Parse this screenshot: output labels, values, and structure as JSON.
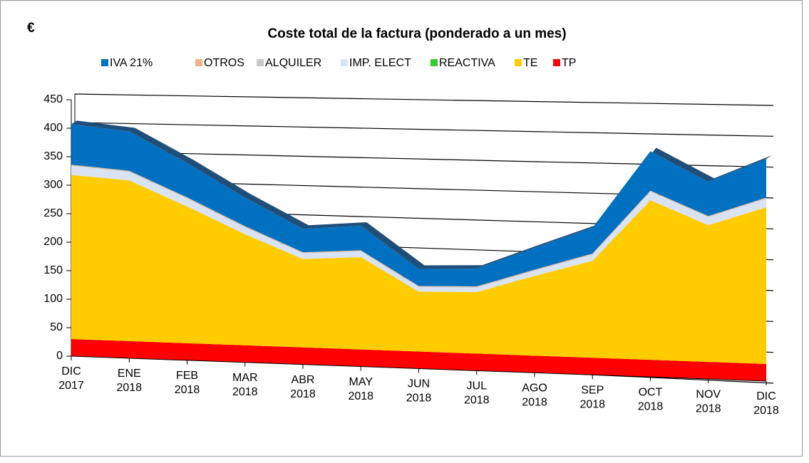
{
  "chart_data": {
    "type": "area3d",
    "unit": "€",
    "title": "Coste total de la factura (ponderado a un mes)",
    "categories": [
      [
        "DIC",
        "2017"
      ],
      [
        "ENE",
        "2018"
      ],
      [
        "FEB",
        "2018"
      ],
      [
        "MAR",
        "2018"
      ],
      [
        "ABR",
        "2018"
      ],
      [
        "MAY",
        "2018"
      ],
      [
        "JUN",
        "2018"
      ],
      [
        "JUL",
        "2018"
      ],
      [
        "AGO",
        "2018"
      ],
      [
        "SEP",
        "2018"
      ],
      [
        "OCT",
        "2018"
      ],
      [
        "NOV",
        "2018"
      ],
      [
        "DIC",
        "2018"
      ]
    ],
    "series": [
      {
        "name": "IVA 21%",
        "color": "#0070c0",
        "values": [
          71,
          69,
          60,
          50,
          41,
          43,
          30,
          31,
          38,
          45,
          69,
          60,
          68
        ]
      },
      {
        "name": "OTROS",
        "color": "#f4b183",
        "values": [
          1,
          1,
          1,
          1,
          1,
          1,
          1,
          1,
          1,
          1,
          1,
          1,
          1
        ]
      },
      {
        "name": "ALQUILER",
        "color": "#c9c9c9",
        "values": [
          1,
          1,
          1,
          1,
          1,
          1,
          1,
          1,
          1,
          1,
          1,
          1,
          1
        ]
      },
      {
        "name": "IMP. ELECT",
        "color": "#dae3f3",
        "values": [
          16,
          15,
          14,
          12,
          10,
          10,
          8,
          8,
          9,
          11,
          15,
          14,
          15
        ]
      },
      {
        "name": "REACTIVA",
        "color": "#33cc33",
        "values": [
          0,
          0,
          0,
          0,
          0,
          0,
          0,
          0,
          0,
          0,
          0,
          0,
          0
        ]
      },
      {
        "name": "TE",
        "color": "#ffcc00",
        "values": [
          288,
          282,
          240,
          195,
          155,
          162,
          105,
          108,
          140,
          170,
          280,
          240,
          275
        ]
      },
      {
        "name": "TP",
        "color": "#ff0000",
        "values": [
          30,
          30,
          30,
          30,
          30,
          30,
          30,
          30,
          30,
          30,
          30,
          30,
          30
        ]
      }
    ],
    "ylim": [
      0,
      450
    ],
    "yticks": [
      0,
      50,
      100,
      150,
      200,
      250,
      300,
      350,
      400,
      450
    ],
    "grid": true
  }
}
